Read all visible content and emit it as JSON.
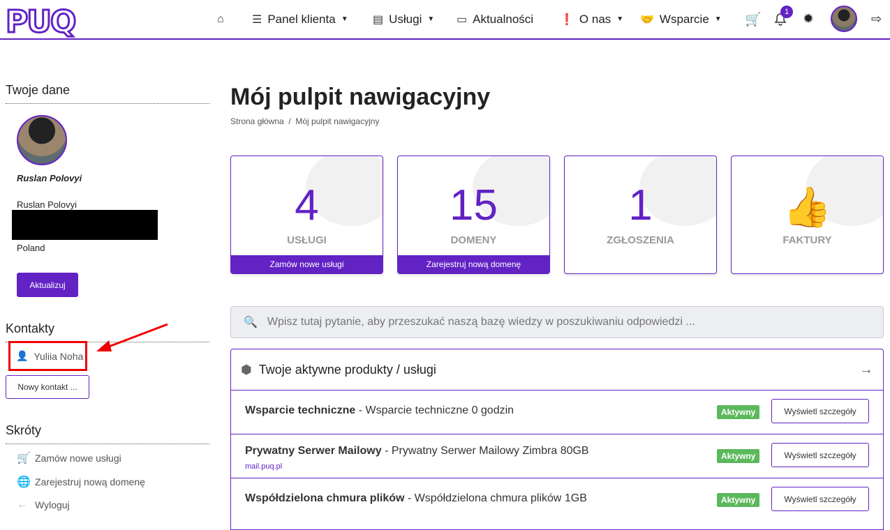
{
  "header": {
    "logo": "PUQ",
    "nav": [
      {
        "label": "Panel klienta",
        "icon": "list-icon"
      },
      {
        "label": "Usługi",
        "icon": "grid-icon"
      },
      {
        "label": "Aktualności",
        "icon": "newspaper-icon"
      },
      {
        "label": "O nas",
        "icon": "exclamation-icon"
      },
      {
        "label": "Wsparcie",
        "icon": "support-icon"
      }
    ],
    "notifications": "1"
  },
  "sidebar": {
    "your_data": "Twoje dane",
    "name_italic": "Ruslan Polovyi",
    "name": "Ruslan Polovyi",
    "country": "Poland",
    "update": "Aktualizuj",
    "contacts": "Kontakty",
    "contact": "Yuliia Noha",
    "new_contact": "Nowy kontakt ...",
    "shortcuts": "Skróty",
    "links": [
      "Zamów nowe usługi",
      "Zarejestruj nową domenę",
      "Wyloguj"
    ]
  },
  "main": {
    "title": "Mój pulpit nawigacyjny",
    "breadcrumb": [
      "Strona główna",
      "Mój pulpit nawigacyjny"
    ],
    "tiles": [
      {
        "num": "4",
        "label": "USŁUGI",
        "footer": "Zamów nowe usługi"
      },
      {
        "num": "15",
        "label": "DOMENY",
        "footer": "Zarejestruj nową domenę"
      },
      {
        "num": "1",
        "label": "ZGŁOSZENIA"
      },
      {
        "label": "FAKTURY"
      }
    ],
    "search_placeholder": "Wpisz tutaj pytanie, aby przeszukać naszą bazę wiedzy w poszukiwaniu odpowiedzi ...",
    "products": {
      "title": "Twoje aktywne produkty / usługi",
      "rows": [
        {
          "name": "Wsparcie techniczne",
          "desc": " - Wsparcie techniczne 0 godzin",
          "status": "Aktywny",
          "btn": "Wyświetl szczegóły"
        },
        {
          "name": "Prywatny Serwer Mailowy",
          "desc": " - Prywatny Serwer Mailowy Zimbra 80GB",
          "sub": "mail.puq.pl",
          "status": "Aktywny",
          "btn": "Wyświetl szczegóły"
        },
        {
          "name": "Współdzielona chmura plików",
          "desc": " - Współdzielona chmura plików 1GB",
          "status": "Aktywny",
          "btn": "Wyświetl szczegóły"
        }
      ]
    }
  },
  "colors": {
    "accent": "#6222c4",
    "active": "#5cb85c",
    "highlight": "#e00000"
  }
}
